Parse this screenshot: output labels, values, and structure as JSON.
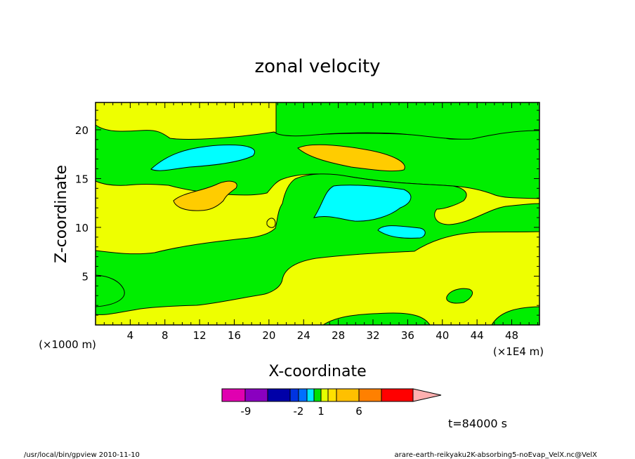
{
  "chart_data": {
    "type": "contour",
    "title": "zonal velocity",
    "xlabel": "X-coordinate",
    "ylabel": "Z-coordinate",
    "x_scale_note": "(×1E4 m)",
    "y_scale_note": "(×1000 m)",
    "xlim": [
      0,
      51.2
    ],
    "ylim": [
      0,
      22.8
    ],
    "x_ticks": [
      "4",
      "8",
      "12",
      "16",
      "20",
      "24",
      "28",
      "32",
      "36",
      "40",
      "44",
      "48"
    ],
    "y_ticks": [
      "5",
      "10",
      "15",
      "20"
    ],
    "x_tick_values": [
      4,
      8,
      12,
      16,
      20,
      24,
      28,
      32,
      36,
      40,
      44,
      48
    ],
    "y_tick_values": [
      5,
      10,
      15,
      20
    ],
    "time_label": "t=84000 s",
    "colorbar": {
      "colors": [
        "#e000b0",
        "#8a00c0",
        "#0000a8",
        "#0033e0",
        "#0070ff",
        "#00e8ff",
        "#00e000",
        "#e6ff00",
        "#ffe000",
        "#ffc000",
        "#ff8000",
        "#ff0000",
        "#ff7070",
        "#ffb0b0"
      ],
      "labels": [
        "-9",
        "-2",
        "1",
        "6"
      ]
    },
    "field_colors": {
      "yellow": "#eeff00",
      "green": "#00ee00",
      "cyan": "#00ffff",
      "orange": "#ffcc00"
    }
  },
  "footer": {
    "left": "/usr/local/bin/gpview   2010-11-10",
    "right": "arare-earth-reikyaku2K-absorbing5-noEvap_VelX.nc@VelX"
  }
}
